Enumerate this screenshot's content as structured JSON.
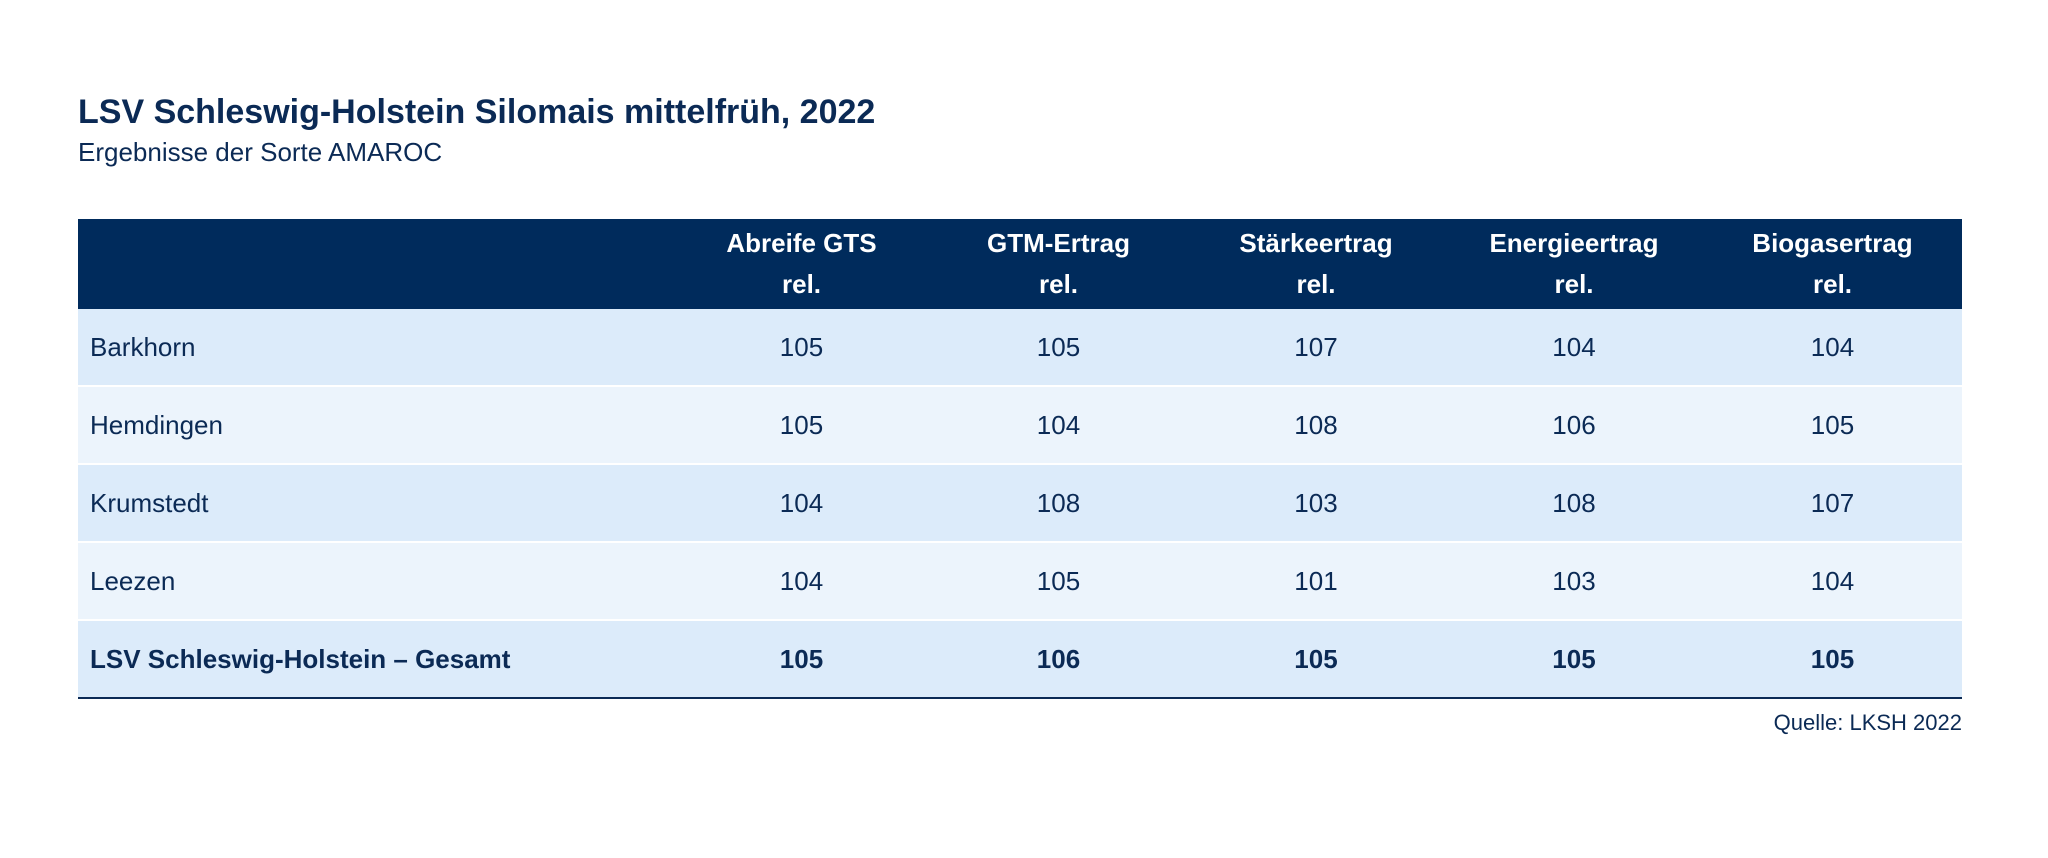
{
  "chart_data": {
    "type": "table",
    "title": "LSV Schleswig-Holstein Silomais mittelfrüh, 2022",
    "subtitle": "Ergebnisse der Sorte AMAROC",
    "columns": [
      {
        "line1": "Abreife GTS",
        "line2": "rel."
      },
      {
        "line1": "GTM-Ertrag",
        "line2": "rel."
      },
      {
        "line1": "Stärkeertrag",
        "line2": "rel."
      },
      {
        "line1": "Energieertrag",
        "line2": "rel."
      },
      {
        "line1": "Biogasertrag",
        "line2": "rel."
      }
    ],
    "rows": [
      {
        "name": "Barkhorn",
        "values": [
          "105",
          "105",
          "107",
          "104",
          "104"
        ]
      },
      {
        "name": "Hemdingen",
        "values": [
          "105",
          "104",
          "108",
          "106",
          "105"
        ]
      },
      {
        "name": "Krumstedt",
        "values": [
          "104",
          "108",
          "103",
          "108",
          "107"
        ]
      },
      {
        "name": "Leezen",
        "values": [
          "104",
          "105",
          "101",
          "103",
          "104"
        ]
      }
    ],
    "total": {
      "name": "LSV Schleswig-Holstein – Gesamt",
      "values": [
        "105",
        "106",
        "105",
        "105",
        "105"
      ]
    },
    "source": "Quelle: LKSH 2022"
  },
  "colors": {
    "header_bg": "#002b5c",
    "text": "#0b2a55",
    "row_dark": "#dcebfa",
    "row_light": "#ecf4fc"
  }
}
